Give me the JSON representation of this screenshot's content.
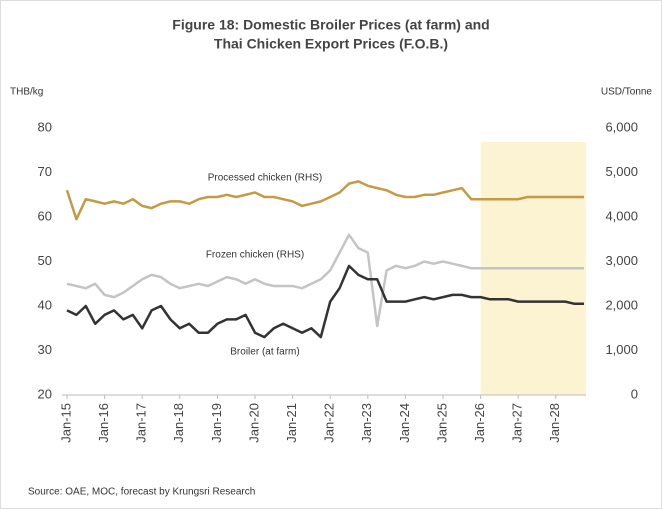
{
  "chart_data": {
    "type": "line",
    "title": [
      "Figure 18: Domestic Broiler Prices (at farm) and",
      "Thai Chicken Export Prices (F.O.B.)"
    ],
    "y_label": "THB/kg",
    "y2_label": "USD/Tonne",
    "source": "Source: OAE, MOC, forecast by Krungsri Research",
    "categories": [
      "Jan-15",
      null,
      null,
      null,
      "Jan-16",
      null,
      null,
      null,
      "Jan-17",
      null,
      null,
      null,
      "Jan-18",
      null,
      null,
      null,
      "Jan-19",
      null,
      null,
      null,
      "Jan-20",
      null,
      null,
      null,
      "Jan-21",
      null,
      null,
      null,
      "Jan-22",
      null,
      null,
      null,
      "Jan-23",
      null,
      null,
      null,
      "Jan-24",
      null,
      null,
      null,
      "Jan-25",
      null,
      null,
      null,
      "Jan-26",
      null,
      null,
      null,
      "Jan-27",
      null,
      null,
      null,
      "Jan-28",
      null,
      null,
      null
    ],
    "highlight_from": "Jan-26",
    "highlight_color": "#fcf3d2",
    "ylim": [
      20,
      80
    ],
    "yticks": [
      20,
      30,
      40,
      50,
      60,
      70,
      80
    ],
    "y2lim": [
      0,
      6000
    ],
    "y2ticks": [
      0,
      {
        "value": 1000,
        "label": "1,000"
      },
      {
        "value": 2000,
        "label": "2,000"
      },
      {
        "value": 3000,
        "label": "3,000"
      },
      {
        "value": 4000,
        "label": "4,000"
      },
      {
        "value": 5000,
        "label": "5,000"
      },
      {
        "value": 6000,
        "label": "6,000"
      }
    ],
    "series": [
      {
        "name": "Processed chicken (RHS)",
        "color": "#c49a45",
        "axis": "y2",
        "values": [
          4600,
          3950,
          4400,
          4350,
          4300,
          4350,
          4300,
          4400,
          4250,
          4200,
          4300,
          4350,
          4350,
          4300,
          4400,
          4450,
          4450,
          4500,
          4450,
          4500,
          4550,
          4450,
          4450,
          4400,
          4350,
          4250,
          4300,
          4350,
          4450,
          4550,
          4750,
          4800,
          4700,
          4650,
          4600,
          4500,
          4450,
          4450,
          4500,
          4500,
          4550,
          4600,
          4650,
          4400,
          4400,
          4400,
          4400,
          4400,
          4400,
          4450,
          4450,
          4450,
          4450,
          4450,
          4450,
          4450
        ]
      },
      {
        "name": "Frozen chicken (RHS)",
        "color": "#c4c4c4",
        "axis": "y2",
        "values": [
          2500,
          2450,
          2400,
          2500,
          2250,
          2200,
          2300,
          2450,
          2600,
          2700,
          2650,
          2500,
          2400,
          2450,
          2500,
          2450,
          2550,
          2650,
          2600,
          2500,
          2600,
          2500,
          2450,
          2450,
          2450,
          2400,
          2500,
          2600,
          2800,
          3200,
          3600,
          3300,
          3200,
          1550,
          2800,
          2900,
          2850,
          2900,
          3000,
          2950,
          3000,
          2950,
          2900,
          2850,
          2850,
          2850,
          2850,
          2850,
          2850,
          2850,
          2850,
          2850,
          2850,
          2850,
          2850,
          2850
        ]
      },
      {
        "name": "Broiler (at farm)",
        "color": "#333333",
        "values": [
          39,
          38,
          40,
          36,
          38,
          39,
          37,
          38,
          35,
          39,
          40,
          37,
          35,
          36,
          34,
          34,
          36,
          37,
          37,
          38,
          34,
          33,
          35,
          36,
          35,
          34,
          35,
          33,
          41,
          44,
          49,
          47,
          46,
          46,
          41,
          41,
          41,
          41.5,
          42,
          41.5,
          42,
          42.5,
          42.5,
          42,
          42,
          41.5,
          41.5,
          41.5,
          41,
          41,
          41,
          41,
          41,
          41,
          40.5,
          40.5
        ]
      }
    ]
  }
}
